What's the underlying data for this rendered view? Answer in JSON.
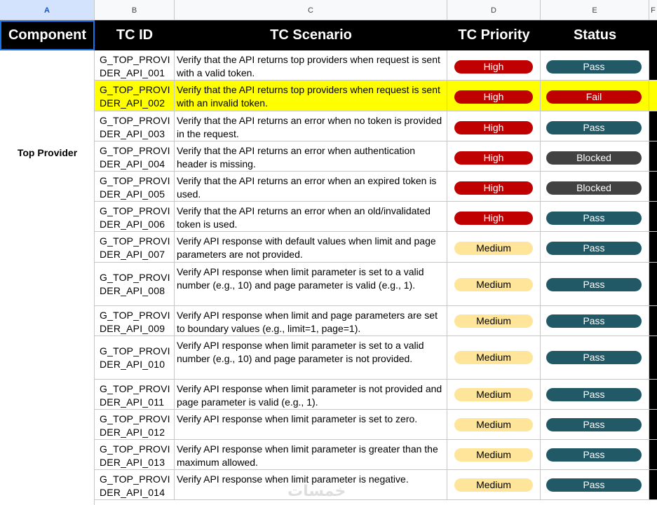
{
  "columns": [
    "A",
    "B",
    "C",
    "D",
    "E",
    "F"
  ],
  "headers": {
    "component": "Component",
    "tc_id": "TC ID",
    "tc_scenario": "TC Scenario",
    "tc_priority": "TC Priority",
    "status": "Status"
  },
  "component_value": "Top Provider",
  "colors": {
    "high": "#c00000",
    "medium": "#ffe599",
    "pass": "#215967",
    "fail": "#c00000",
    "blocked": "#424242",
    "highlight_row": "#ffff00"
  },
  "rows": [
    {
      "id_1": "G_TOP_PROVI",
      "id_2": "DER_API_001",
      "scenario": "Verify that the API returns top providers when request is sent with a valid token.",
      "priority": "High",
      "status": "Pass"
    },
    {
      "id_1": "G_TOP_PROVI",
      "id_2": "DER_API_002",
      "scenario": "Verify that the API returns top providers when request is sent with an invalid token.",
      "priority": "High",
      "status": "Fail"
    },
    {
      "id_1": "G_TOP_PROVI",
      "id_2": "DER_API_003",
      "scenario": "Verify that the API returns an error when no token is provided in the request.",
      "priority": "High",
      "status": "Pass"
    },
    {
      "id_1": "G_TOP_PROVI",
      "id_2": "DER_API_004",
      "scenario": "Verify that the API returns an error when authentication header is missing.",
      "priority": "High",
      "status": "Blocked"
    },
    {
      "id_1": "G_TOP_PROVI",
      "id_2": "DER_API_005",
      "scenario": "Verify that the API returns an error when an expired token is used.",
      "priority": "High",
      "status": "Blocked"
    },
    {
      "id_1": "G_TOP_PROVI",
      "id_2": "DER_API_006",
      "scenario": "Verify that the API returns an error when an old/invalidated token is used.",
      "priority": "High",
      "status": "Pass"
    },
    {
      "id_1": "G_TOP_PROVI",
      "id_2": "DER_API_007",
      "scenario": "Verify API response with default values when limit and page parameters are not provided.",
      "priority": "Medium",
      "status": "Pass"
    },
    {
      "id_1": "G_TOP_PROVI",
      "id_2": "DER_API_008",
      "scenario": "Verify API response when limit parameter is set to a valid number (e.g., 10) and page parameter is valid (e.g., 1).",
      "priority": "Medium",
      "status": "Pass"
    },
    {
      "id_1": "G_TOP_PROVI",
      "id_2": "DER_API_009",
      "scenario": "Verify API response when limit and page parameters are set to boundary values (e.g., limit=1, page=1).",
      "priority": "Medium",
      "status": "Pass"
    },
    {
      "id_1": "G_TOP_PROVI",
      "id_2": "DER_API_010",
      "scenario": "Verify API response when limit parameter is set to a valid number (e.g., 10) and page parameter is not provided.",
      "priority": "Medium",
      "status": "Pass"
    },
    {
      "id_1": "G_TOP_PROVI",
      "id_2": "DER_API_011",
      "scenario": "Verify API response when limit parameter is not provided and page parameter is valid (e.g., 1).",
      "priority": "Medium",
      "status": "Pass"
    },
    {
      "id_1": "G_TOP_PROVI",
      "id_2": "DER_API_012",
      "scenario": "Verify API response when limit parameter is set to zero.",
      "priority": "Medium",
      "status": "Pass"
    },
    {
      "id_1": "G_TOP_PROVI",
      "id_2": "DER_API_013",
      "scenario": "Verify API response when limit parameter is greater than the maximum allowed.",
      "priority": "Medium",
      "status": "Pass"
    },
    {
      "id_1": "G_TOP_PROVI",
      "id_2": "DER_API_014",
      "scenario": "Verify API response when limit parameter is negative.",
      "priority": "Medium",
      "status": "Pass"
    }
  ],
  "watermark": "خمسات"
}
